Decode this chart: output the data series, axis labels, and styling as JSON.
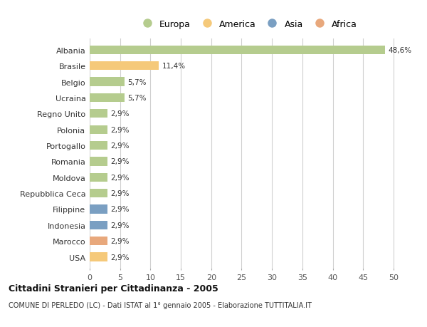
{
  "countries": [
    "Albania",
    "Brasile",
    "Belgio",
    "Ucraina",
    "Regno Unito",
    "Polonia",
    "Portogallo",
    "Romania",
    "Moldova",
    "Repubblica Ceca",
    "Filippine",
    "Indonesia",
    "Marocco",
    "USA"
  ],
  "values": [
    48.6,
    11.4,
    5.7,
    5.7,
    2.9,
    2.9,
    2.9,
    2.9,
    2.9,
    2.9,
    2.9,
    2.9,
    2.9,
    2.9
  ],
  "labels": [
    "48,6%",
    "11,4%",
    "5,7%",
    "5,7%",
    "2,9%",
    "2,9%",
    "2,9%",
    "2,9%",
    "2,9%",
    "2,9%",
    "2,9%",
    "2,9%",
    "2,9%",
    "2,9%"
  ],
  "colors": [
    "#b5cc8e",
    "#f5c97a",
    "#b5cc8e",
    "#b5cc8e",
    "#b5cc8e",
    "#b5cc8e",
    "#b5cc8e",
    "#b5cc8e",
    "#b5cc8e",
    "#b5cc8e",
    "#7a9fc2",
    "#7a9fc2",
    "#e8a87c",
    "#f5c97a"
  ],
  "legend_labels": [
    "Europa",
    "America",
    "Asia",
    "Africa"
  ],
  "legend_colors": [
    "#b5cc8e",
    "#f5c97a",
    "#7a9fc2",
    "#e8a87c"
  ],
  "title": "Cittadini Stranieri per Cittadinanza - 2005",
  "subtitle": "COMUNE DI PERLEDO (LC) - Dati ISTAT al 1° gennaio 2005 - Elaborazione TUTTITALIA.IT",
  "xlim": [
    0,
    52
  ],
  "xticks": [
    0,
    5,
    10,
    15,
    20,
    25,
    30,
    35,
    40,
    45,
    50
  ],
  "background_color": "#ffffff",
  "grid_color": "#d0d0d0",
  "bar_height": 0.55
}
